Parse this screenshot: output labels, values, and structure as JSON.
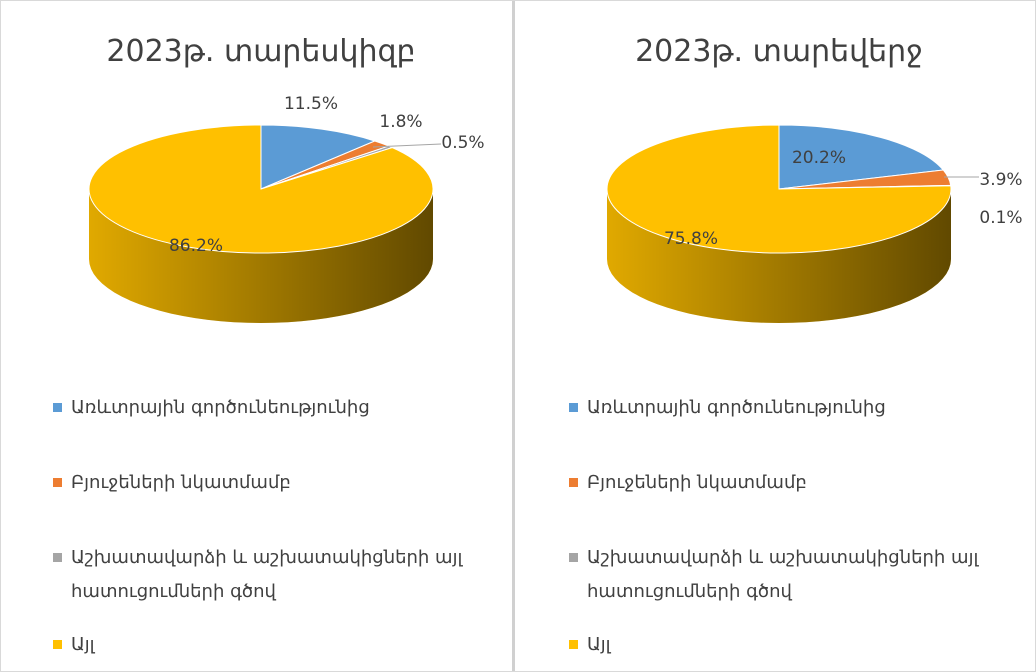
{
  "chart_data": [
    {
      "type": "pie",
      "title": "2023թ. տարեսկիզբ",
      "categories": [
        "Առևտրային գործունեությունից",
        "Բյուջեների նկատմամբ",
        "Աշխատավարձի և աշխատակիցների այլ հատուցումների գծով",
        "Այլ"
      ],
      "values": [
        11.5,
        1.8,
        0.5,
        86.2
      ],
      "value_labels": [
        "11.5%",
        "1.8%",
        "0.5%",
        "86.2%"
      ],
      "colors": [
        "#5b9bd5",
        "#ed7d31",
        "#a5a5a5",
        "#ffc000"
      ]
    },
    {
      "type": "pie",
      "title": "2023թ. տարեվերջ",
      "categories": [
        "Առևտրային գործունեությունից",
        "Բյուջեների նկատմամբ",
        "Աշխատավարձի և աշխատակիցների այլ հատուցումների գծով",
        "Այլ"
      ],
      "values": [
        20.2,
        3.9,
        0.1,
        75.8
      ],
      "value_labels": [
        "20.2%",
        "3.9%",
        "0.1%",
        "75.8%"
      ],
      "colors": [
        "#5b9bd5",
        "#ed7d31",
        "#a5a5a5",
        "#ffc000"
      ]
    }
  ]
}
